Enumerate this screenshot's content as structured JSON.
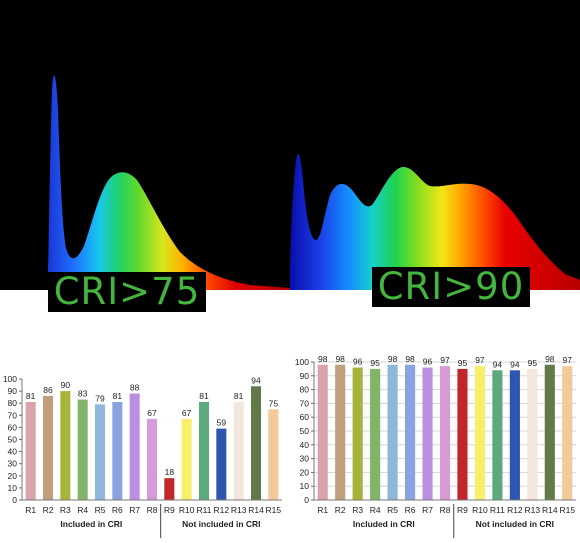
{
  "banners": {
    "left": "CRI>75",
    "right": "CRI>90"
  },
  "chart_data": [
    {
      "type": "bar",
      "categories": [
        "R1",
        "R2",
        "R3",
        "R4",
        "R5",
        "R6",
        "R7",
        "R8",
        "R9",
        "R10",
        "R11",
        "R12",
        "R13",
        "R14",
        "R15"
      ],
      "values": [
        81,
        86,
        90,
        83,
        79,
        81,
        88,
        67,
        18,
        67,
        81,
        59,
        81,
        94,
        75
      ],
      "colors": [
        "#d9a3ad",
        "#c0a07c",
        "#a8b33a",
        "#82b56a",
        "#8fb7d9",
        "#8aa3e0",
        "#bb8fe0",
        "#d79bd8",
        "#c0262c",
        "#f7ef6a",
        "#5da97d",
        "#2e55b0",
        "#f3e6dc",
        "#627a4a",
        "#f3c89a"
      ],
      "ylim": [
        0,
        100
      ],
      "yticks": [
        0,
        10,
        20,
        30,
        40,
        50,
        60,
        70,
        80,
        90,
        100
      ],
      "grid": false,
      "group_labels": [
        "Included in CRI",
        "Not included in CRI"
      ]
    },
    {
      "type": "bar",
      "categories": [
        "R1",
        "R2",
        "R3",
        "R4",
        "R5",
        "R6",
        "R7",
        "R8",
        "R9",
        "R10",
        "R11",
        "R12",
        "R13",
        "R14",
        "R15"
      ],
      "values": [
        98,
        98,
        96,
        95,
        98,
        98,
        96,
        97,
        95,
        97,
        94,
        94,
        95,
        98,
        97
      ],
      "colors": [
        "#d9a3ad",
        "#c0a07c",
        "#a8b33a",
        "#82b56a",
        "#8fb7d9",
        "#8aa3e0",
        "#bb8fe0",
        "#d79bd8",
        "#c0262c",
        "#f7ef6a",
        "#5da97d",
        "#2e55b0",
        "#f3e6dc",
        "#627a4a",
        "#f3c89a"
      ],
      "ylim": [
        0,
        100
      ],
      "yticks": [
        0,
        10,
        20,
        30,
        40,
        50,
        60,
        70,
        80,
        90,
        100
      ],
      "grid": true,
      "group_labels": [
        "Included in CRI",
        "Not included in CRI"
      ]
    }
  ]
}
